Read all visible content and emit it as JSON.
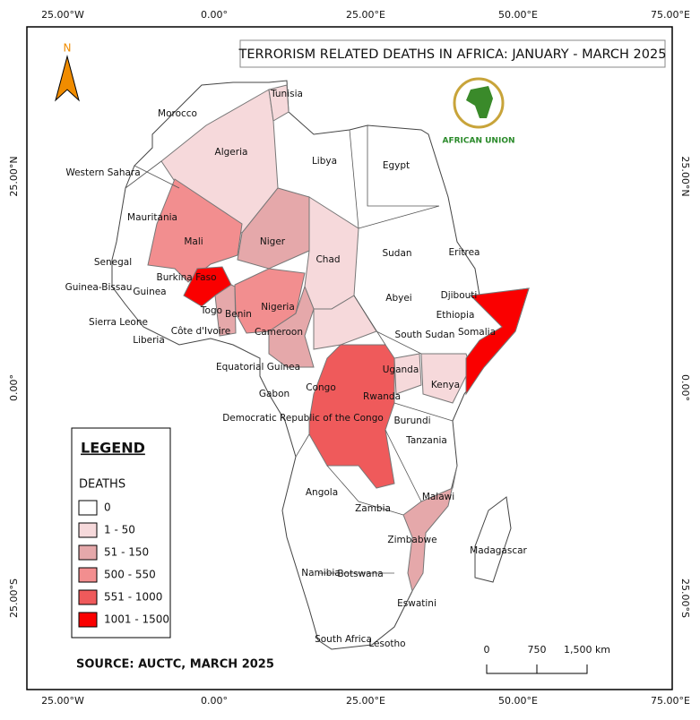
{
  "title": "TERRORISM RELATED DEATHS IN AFRICA: JANUARY - MARCH 2025",
  "north": "N",
  "logo_text": "AFRICAN UNION",
  "longitude_labels": [
    "25.00°W",
    "0.00°",
    "25.00°E",
    "50.00°E",
    "75.00°E"
  ],
  "latitude_labels": [
    "25.00°N",
    "0.00°",
    "25.00°S"
  ],
  "legend": {
    "title": "LEGEND",
    "subtitle": "DEATHS",
    "classes": [
      {
        "label": "0",
        "color": "#ffffff"
      },
      {
        "label": "1 - 50",
        "color": "#f6d9db"
      },
      {
        "label": "51 - 150",
        "color": "#e5a8aa"
      },
      {
        "label": "500 - 550",
        "color": "#f28e8f"
      },
      {
        "label": "551 - 1000",
        "color": "#ef5a5b"
      },
      {
        "label": "1001 - 1500",
        "color": "#fa0000"
      }
    ]
  },
  "source": "SOURCE: AUCTC, MARCH 2025",
  "scale_bar": [
    "0",
    "750",
    "1,500 km"
  ],
  "countries": [
    "Tunisia",
    "Morocco",
    "Algeria",
    "Libya",
    "Egypt",
    "Western Sahara",
    "Mauritania",
    "Mali",
    "Niger",
    "Chad",
    "Sudan",
    "Eritrea",
    "Senegal",
    "Burkina Faso",
    "Guinea-Bissau",
    "Guinea",
    "Djibouti",
    "Togo",
    "Benin",
    "Nigeria",
    "Abyei",
    "Ethiopia",
    "Sierra Leone",
    "Côte d'Ivoire",
    "Cameroon",
    "South Sudan",
    "Somalia",
    "Liberia",
    "Equatorial Guinea",
    "Uganda",
    "Kenya",
    "Gabon",
    "Congo",
    "Rwanda",
    "Democratic Republic of the Congo",
    "Burundi",
    "Tanzania",
    "Angola",
    "Malawi",
    "Zambia",
    "Zimbabwe",
    "Madagascar",
    "Namibia",
    "Botswana",
    "Eswatini",
    "South Africa",
    "Lesotho"
  ]
}
